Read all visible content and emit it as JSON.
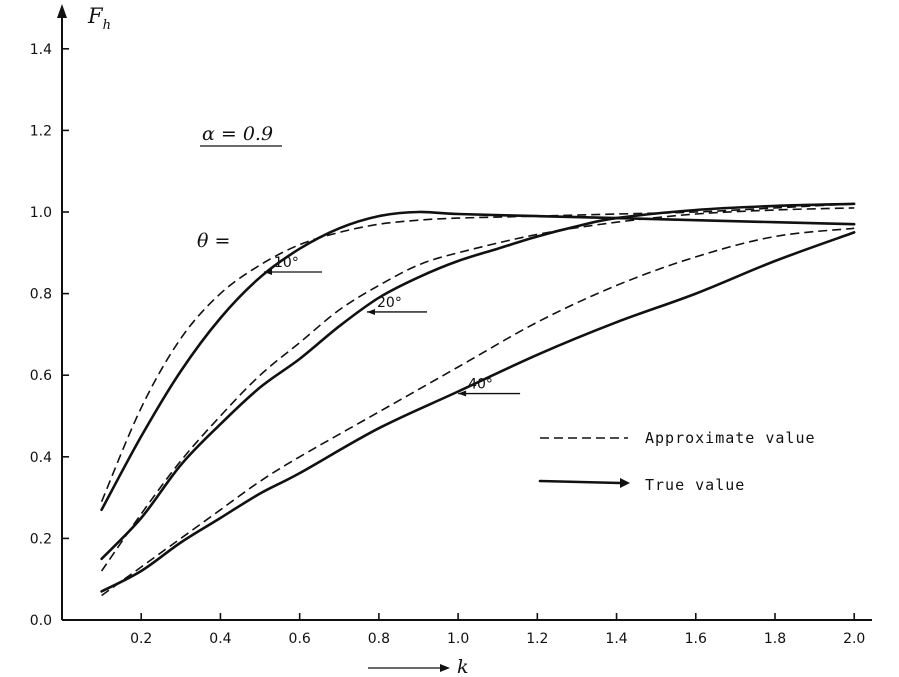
{
  "chart_data": {
    "type": "line",
    "title": "",
    "xlabel": "k",
    "ylabel": "F",
    "ylabel_sub": "h",
    "xlim": [
      0.0,
      2.1
    ],
    "ylim": [
      0.0,
      1.5
    ],
    "xticks": [
      {
        "value": 0.2,
        "label": "0.2"
      },
      {
        "value": 0.4,
        "label": "0.4"
      },
      {
        "value": 0.6,
        "label": "0.6"
      },
      {
        "value": 0.8,
        "label": "0.8"
      },
      {
        "value": 1.0,
        "label": "1.0"
      },
      {
        "value": 1.2,
        "label": "1.2"
      },
      {
        "value": 1.4,
        "label": "1.4"
      },
      {
        "value": 1.6,
        "label": "1.6"
      },
      {
        "value": 1.8,
        "label": "1.8"
      },
      {
        "value": 2.0,
        "label": "2.0"
      }
    ],
    "yticks": [
      {
        "value": 0.0,
        "label": "0.0"
      },
      {
        "value": 0.2,
        "label": "0.2"
      },
      {
        "value": 0.4,
        "label": "0.4"
      },
      {
        "value": 0.6,
        "label": "0.6"
      },
      {
        "value": 0.8,
        "label": "0.8"
      },
      {
        "value": 1.0,
        "label": "1.0"
      },
      {
        "value": 1.2,
        "label": "1.2"
      },
      {
        "value": 1.4,
        "label": "1.4"
      }
    ],
    "grid": false,
    "annotation_alpha": "α = 0.9",
    "annotation_theta": "θ =",
    "legend": {
      "position": "lower-right",
      "approximate_label": "Approximate value",
      "true_label": "True value"
    },
    "series": [
      {
        "theta": "10°",
        "label": "10°",
        "kind": "true",
        "points": [
          [
            0.1,
            0.27
          ],
          [
            0.2,
            0.45
          ],
          [
            0.3,
            0.61
          ],
          [
            0.4,
            0.74
          ],
          [
            0.5,
            0.84
          ],
          [
            0.6,
            0.91
          ],
          [
            0.7,
            0.96
          ],
          [
            0.8,
            0.99
          ],
          [
            0.9,
            1.0
          ],
          [
            1.0,
            0.995
          ],
          [
            1.2,
            0.99
          ],
          [
            1.4,
            0.985
          ],
          [
            1.6,
            0.98
          ],
          [
            1.8,
            0.975
          ],
          [
            2.0,
            0.97
          ]
        ]
      },
      {
        "theta": "10°",
        "label": "",
        "kind": "approx",
        "points": [
          [
            0.1,
            0.29
          ],
          [
            0.2,
            0.52
          ],
          [
            0.3,
            0.69
          ],
          [
            0.4,
            0.8
          ],
          [
            0.5,
            0.87
          ],
          [
            0.6,
            0.92
          ],
          [
            0.7,
            0.95
          ],
          [
            0.8,
            0.97
          ],
          [
            0.9,
            0.98
          ],
          [
            1.0,
            0.985
          ],
          [
            1.2,
            0.99
          ],
          [
            1.4,
            0.995
          ],
          [
            1.6,
            1.0
          ],
          [
            1.8,
            1.01
          ],
          [
            2.0,
            1.02
          ]
        ]
      },
      {
        "theta": "20°",
        "label": "20°",
        "kind": "true",
        "points": [
          [
            0.1,
            0.15
          ],
          [
            0.2,
            0.25
          ],
          [
            0.3,
            0.38
          ],
          [
            0.4,
            0.48
          ],
          [
            0.5,
            0.57
          ],
          [
            0.6,
            0.64
          ],
          [
            0.7,
            0.72
          ],
          [
            0.8,
            0.79
          ],
          [
            0.9,
            0.84
          ],
          [
            1.0,
            0.88
          ],
          [
            1.1,
            0.91
          ],
          [
            1.2,
            0.94
          ],
          [
            1.3,
            0.965
          ],
          [
            1.4,
            0.985
          ],
          [
            1.6,
            1.005
          ],
          [
            1.8,
            1.015
          ],
          [
            2.0,
            1.02
          ]
        ]
      },
      {
        "theta": "20°",
        "label": "",
        "kind": "approx",
        "points": [
          [
            0.1,
            0.12
          ],
          [
            0.2,
            0.26
          ],
          [
            0.3,
            0.39
          ],
          [
            0.4,
            0.5
          ],
          [
            0.5,
            0.6
          ],
          [
            0.6,
            0.68
          ],
          [
            0.7,
            0.76
          ],
          [
            0.8,
            0.82
          ],
          [
            0.9,
            0.87
          ],
          [
            1.0,
            0.9
          ],
          [
            1.2,
            0.945
          ],
          [
            1.4,
            0.975
          ],
          [
            1.6,
            0.995
          ],
          [
            1.8,
            1.005
          ],
          [
            2.0,
            1.01
          ]
        ]
      },
      {
        "theta": "40°",
        "label": "40°",
        "kind": "true",
        "points": [
          [
            0.1,
            0.07
          ],
          [
            0.2,
            0.12
          ],
          [
            0.3,
            0.19
          ],
          [
            0.4,
            0.25
          ],
          [
            0.5,
            0.31
          ],
          [
            0.6,
            0.36
          ],
          [
            0.8,
            0.47
          ],
          [
            1.0,
            0.56
          ],
          [
            1.2,
            0.65
          ],
          [
            1.4,
            0.73
          ],
          [
            1.6,
            0.8
          ],
          [
            1.8,
            0.88
          ],
          [
            2.0,
            0.95
          ]
        ]
      },
      {
        "theta": "40°",
        "label": "",
        "kind": "approx",
        "points": [
          [
            0.1,
            0.06
          ],
          [
            0.2,
            0.13
          ],
          [
            0.3,
            0.2
          ],
          [
            0.4,
            0.27
          ],
          [
            0.5,
            0.34
          ],
          [
            0.6,
            0.4
          ],
          [
            0.8,
            0.51
          ],
          [
            1.0,
            0.62
          ],
          [
            1.2,
            0.73
          ],
          [
            1.4,
            0.82
          ],
          [
            1.6,
            0.89
          ],
          [
            1.8,
            0.94
          ],
          [
            2.0,
            0.96
          ]
        ]
      }
    ]
  }
}
